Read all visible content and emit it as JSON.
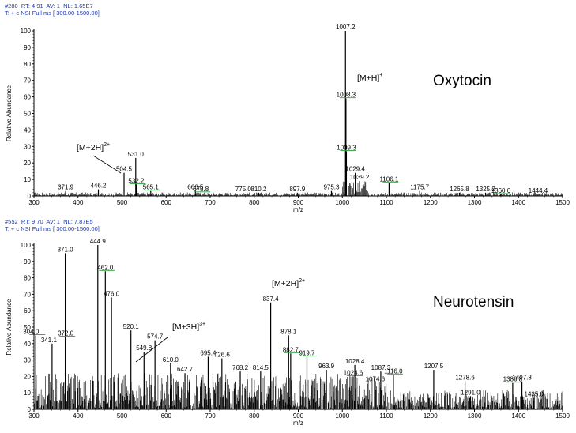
{
  "chart_data": [
    {
      "type": "line",
      "header": {
        "line1_scan": "#280",
        "line1_rt": "RT: 4.91",
        "line1_av": "AV: 1",
        "line1_nl": "NL: 1.65E7",
        "line2": "T: + c NSI Full ms [ 300.00-1500.00]"
      },
      "title": "Oxytocin",
      "xlabel": "m/z",
      "ylabel": "Relative Abundance",
      "xlim": [
        300,
        1500
      ],
      "ylim": [
        0,
        100
      ],
      "x_ticks": [
        300,
        400,
        500,
        600,
        700,
        800,
        900,
        1000,
        1100,
        1200,
        1300,
        1400,
        1500
      ],
      "y_ticks": [
        0,
        10,
        20,
        30,
        40,
        50,
        60,
        70,
        80,
        90,
        100
      ],
      "peaks": [
        {
          "mz": 371.9,
          "y": 3,
          "label": "371.9"
        },
        {
          "mz": 446.2,
          "y": 4,
          "label": "446.2"
        },
        {
          "mz": 504.5,
          "y": 14,
          "label": "504.5"
        },
        {
          "mz": 531.0,
          "y": 23,
          "label": "531.0"
        },
        {
          "mz": 532.2,
          "y": 7,
          "label": "532.2"
        },
        {
          "mz": 565.1,
          "y": 3,
          "label": "565.1"
        },
        {
          "mz": 666.5,
          "y": 3,
          "label": "666.5"
        },
        {
          "mz": 678.8,
          "y": 2,
          "label": "678.8"
        },
        {
          "mz": 775.0,
          "y": 2,
          "label": "775.0"
        },
        {
          "mz": 810.2,
          "y": 2,
          "label": "810.2"
        },
        {
          "mz": 897.9,
          "y": 2,
          "label": "897.9"
        },
        {
          "mz": 975.3,
          "y": 3,
          "label": "975.3"
        },
        {
          "mz": 1007.2,
          "y": 100,
          "label": "1007.2"
        },
        {
          "mz": 1008.3,
          "y": 59,
          "label": "1008.3"
        },
        {
          "mz": 1009.3,
          "y": 27,
          "label": "1009.3"
        },
        {
          "mz": 1029.4,
          "y": 14,
          "label": "1029.4"
        },
        {
          "mz": 1039.2,
          "y": 9,
          "label": "1039.2"
        },
        {
          "mz": 1106.1,
          "y": 8,
          "label": "1106.1"
        },
        {
          "mz": 1175.7,
          "y": 3,
          "label": "1175.7"
        },
        {
          "mz": 1265.8,
          "y": 2,
          "label": "1265.8"
        },
        {
          "mz": 1325.2,
          "y": 2,
          "label": "1325.2"
        },
        {
          "mz": 1360.0,
          "y": 1,
          "label": "1360.0"
        },
        {
          "mz": 1444.4,
          "y": 1,
          "label": "1444.4"
        }
      ],
      "annotations": [
        {
          "text": "[M+H]",
          "sup": "+",
          "near_mz": 1007.2
        },
        {
          "text": "[M+2H]",
          "sup": "2+",
          "near_mz": 504.5
        }
      ]
    },
    {
      "type": "line",
      "header": {
        "line1_scan": "#552",
        "line1_rt": "RT: 9.70",
        "line1_av": "AV: 1",
        "line1_nl": "NL: 7.87E5",
        "line2": "T: + c NSI Full ms [ 300.00-1500.00]"
      },
      "title": "Neurotensin",
      "xlabel": "m/z",
      "ylabel": "Relative Abundance",
      "xlim": [
        300,
        1500
      ],
      "ylim": [
        0,
        100
      ],
      "x_ticks": [
        300,
        400,
        500,
        600,
        700,
        800,
        900,
        1000,
        1100,
        1200,
        1300,
        1400,
        1500
      ],
      "y_ticks": [
        0,
        10,
        20,
        30,
        40,
        50,
        60,
        70,
        80,
        90,
        100
      ],
      "peaks": [
        {
          "mz": 304.0,
          "y": 45,
          "label": "304.0"
        },
        {
          "mz": 341.1,
          "y": 40,
          "label": "341.1"
        },
        {
          "mz": 371.0,
          "y": 95,
          "label": "371.0"
        },
        {
          "mz": 372.0,
          "y": 44,
          "label": "372.0"
        },
        {
          "mz": 444.9,
          "y": 100,
          "label": "444.9"
        },
        {
          "mz": 462.0,
          "y": 84,
          "label": "462.0"
        },
        {
          "mz": 476.0,
          "y": 68,
          "label": "476.0"
        },
        {
          "mz": 520.1,
          "y": 48,
          "label": "520.1"
        },
        {
          "mz": 549.8,
          "y": 35,
          "label": "549.8"
        },
        {
          "mz": 574.7,
          "y": 42,
          "label": "574.7"
        },
        {
          "mz": 610.0,
          "y": 28,
          "label": "610.0"
        },
        {
          "mz": 642.7,
          "y": 22,
          "label": "642.7"
        },
        {
          "mz": 695.4,
          "y": 32,
          "label": "695.4"
        },
        {
          "mz": 726.6,
          "y": 31,
          "label": "726.6"
        },
        {
          "mz": 768.2,
          "y": 23,
          "label": "768.2"
        },
        {
          "mz": 814.5,
          "y": 23,
          "label": "814.5"
        },
        {
          "mz": 837.4,
          "y": 65,
          "label": "837.4"
        },
        {
          "mz": 878.1,
          "y": 45,
          "label": "878.1"
        },
        {
          "mz": 882.7,
          "y": 34,
          "label": "882.7"
        },
        {
          "mz": 919.7,
          "y": 32,
          "label": "919.7"
        },
        {
          "mz": 963.9,
          "y": 24,
          "label": "963.9"
        },
        {
          "mz": 1024.6,
          "y": 20,
          "label": "1024.6"
        },
        {
          "mz": 1028.4,
          "y": 27,
          "label": "1028.4"
        },
        {
          "mz": 1074.6,
          "y": 16,
          "label": "1074.6"
        },
        {
          "mz": 1087.3,
          "y": 23,
          "label": "1087.3"
        },
        {
          "mz": 1116.0,
          "y": 21,
          "label": "1116.0"
        },
        {
          "mz": 1207.5,
          "y": 24,
          "label": "1207.5"
        },
        {
          "mz": 1278.6,
          "y": 17,
          "label": "1278.6"
        },
        {
          "mz": 1291.0,
          "y": 8,
          "label": "1291.0"
        },
        {
          "mz": 1386.8,
          "y": 16,
          "label": "1386.8"
        },
        {
          "mz": 1407.8,
          "y": 17,
          "label": "1407.8"
        },
        {
          "mz": 1435.0,
          "y": 7,
          "label": "1435.0"
        }
      ],
      "annotations": [
        {
          "text": "[M+2H]",
          "sup": "2+",
          "near_mz": 837.4
        },
        {
          "text": "[M+3H]",
          "sup": "3+",
          "near_mz": 549.8
        }
      ]
    }
  ],
  "colors": {
    "header_text": "#1f3aa8",
    "shoulder_marker": "#2a9d3a",
    "axis": "#000000"
  }
}
